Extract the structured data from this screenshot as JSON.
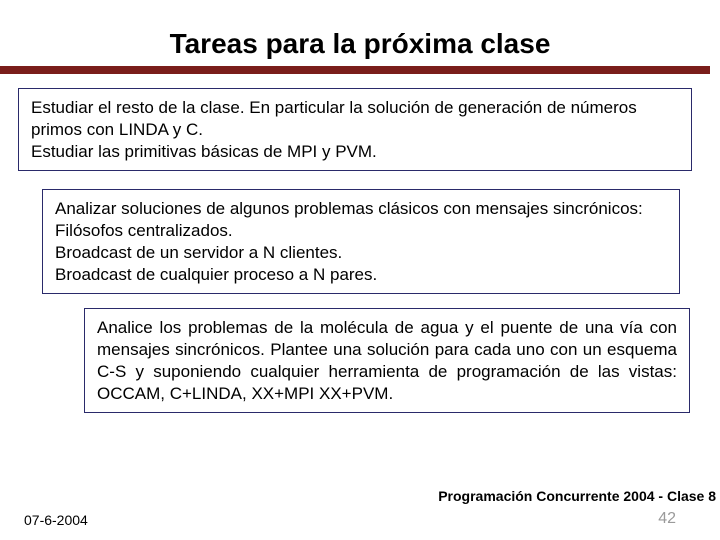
{
  "title": "Tareas para la próxima clase",
  "colors": {
    "rule": "#7a1d1a",
    "box_border": "#2a2a6a",
    "text": "#000000",
    "page_number": "#9a9a9a",
    "background": "#ffffff"
  },
  "boxes": [
    {
      "lines": [
        "Estudiar el resto de la clase. En particular la solución de generación de números primos con LINDA y C.",
        "Estudiar las primitivas básicas de MPI y PVM."
      ]
    },
    {
      "lines": [
        "Analizar soluciones de algunos problemas clásicos con mensajes sincrónicos:",
        "Filósofos centralizados.",
        "Broadcast de un servidor a N clientes.",
        "Broadcast de cualquier proceso a N pares."
      ]
    },
    {
      "lines": [
        "Analice los problemas de la molécula de agua y el puente de una vía con mensajes sincrónicos. Plantee una solución para cada uno con un esquema C-S y suponiendo cualquier herramienta de programación de las vistas: OCCAM, C+LINDA, XX+MPI XX+PVM."
      ]
    }
  ],
  "footer": {
    "course": "Programación Concurrente 2004 - Clase 8",
    "date": "07-6-2004",
    "page": "42"
  }
}
